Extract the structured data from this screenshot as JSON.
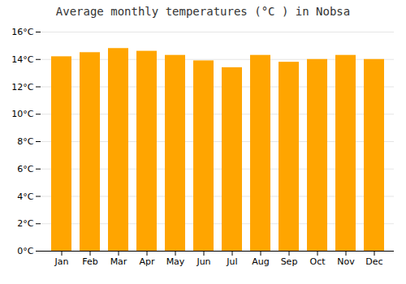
{
  "chart_data": {
    "type": "bar",
    "title": "Average monthly temperatures (°C ) in Nobsa",
    "categories": [
      "Jan",
      "Feb",
      "Mar",
      "Apr",
      "May",
      "Jun",
      "Jul",
      "Aug",
      "Sep",
      "Oct",
      "Nov",
      "Dec"
    ],
    "values": [
      14.2,
      14.5,
      14.8,
      14.6,
      14.3,
      13.9,
      13.4,
      14.3,
      13.8,
      14.0,
      14.3,
      14.0
    ],
    "color": "#FFA500",
    "ylim": [
      0,
      16
    ],
    "yticks": [
      {
        "value": 0,
        "label": "0°C"
      },
      {
        "value": 2,
        "label": "2°C"
      },
      {
        "value": 4,
        "label": "4°C"
      },
      {
        "value": 6,
        "label": "6°C"
      },
      {
        "value": 8,
        "label": "8°C"
      },
      {
        "value": 10,
        "label": "10°C"
      },
      {
        "value": 12,
        "label": "12°C"
      },
      {
        "value": 14,
        "label": "14°C"
      },
      {
        "value": 16,
        "label": "16°C"
      }
    ],
    "grid": true
  }
}
